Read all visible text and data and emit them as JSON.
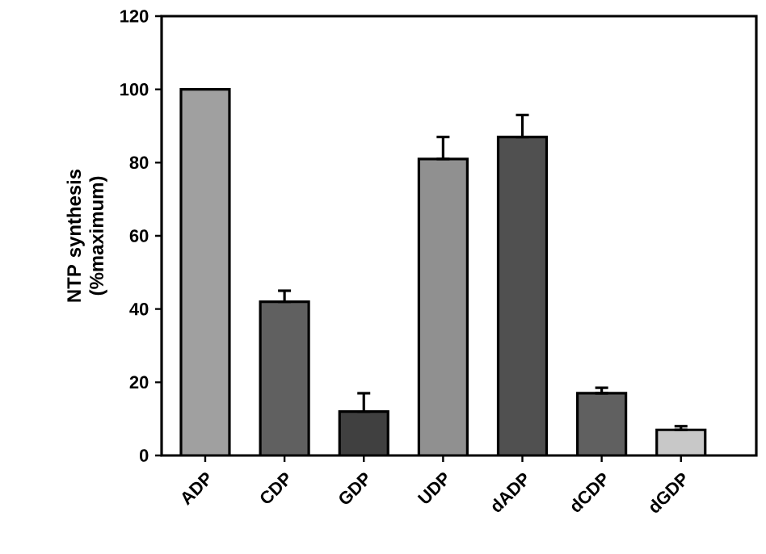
{
  "chart_data": {
    "type": "bar",
    "ylabel": "NTP synthesis (%maximum)",
    "categories": [
      "ADP",
      "CDP",
      "GDP",
      "UDP",
      "dADP",
      "dCDP",
      "dGDP"
    ],
    "values": [
      100,
      42,
      12,
      81,
      87,
      17,
      7
    ],
    "errors": [
      null,
      [
        42,
        45
      ],
      [
        12,
        17
      ],
      [
        81,
        87
      ],
      [
        87,
        93
      ],
      [
        17,
        18.5
      ],
      [
        7,
        8
      ]
    ],
    "colors": [
      "#a0a0a0",
      "#606060",
      "#404040",
      "#909090",
      "#505050",
      "#606060",
      "#c8c8c8"
    ],
    "ylim": [
      0,
      120
    ],
    "yticks": [
      0,
      20,
      40,
      60,
      80,
      100,
      120
    ]
  }
}
